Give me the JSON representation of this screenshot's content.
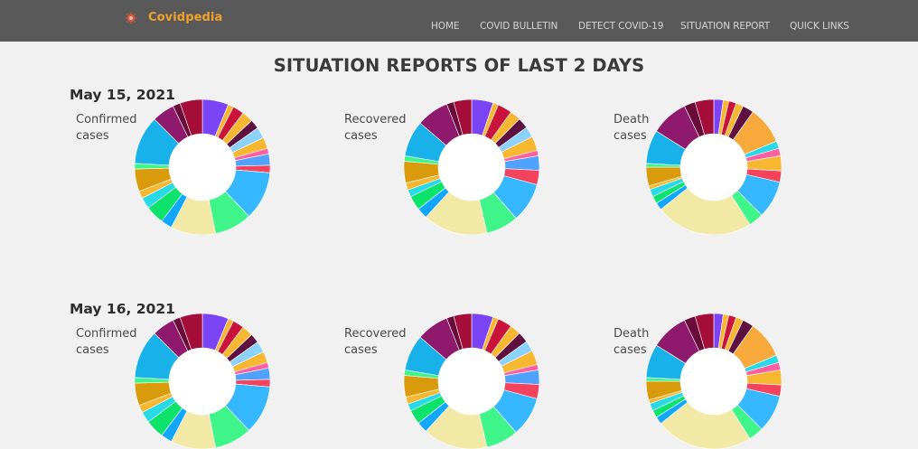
{
  "brand": {
    "name": "Covidpedia",
    "icon": "virus-icon",
    "icon_color": "#e0563f"
  },
  "nav": {
    "items": [
      {
        "label": "HOME"
      },
      {
        "label": "COVID BULLETIN"
      },
      {
        "label": "DETECT COVID-19"
      },
      {
        "label": "SITUATION REPORT"
      },
      {
        "label": "QUICK LINKS"
      }
    ]
  },
  "page": {
    "title": "SITUATION REPORTS OF LAST 2 DAYS"
  },
  "reports": [
    {
      "date": "May 15, 2021",
      "charts": [
        {
          "label_line1": "Confirmed",
          "label_line2": "cases"
        },
        {
          "label_line1": "Recovered",
          "label_line2": "cases"
        },
        {
          "label_line1": "Death",
          "label_line2": "cases"
        }
      ]
    },
    {
      "date": "May 16, 2021",
      "charts": [
        {
          "label_line1": "Confirmed",
          "label_line2": "cases"
        },
        {
          "label_line1": "Recovered",
          "label_line2": "cases"
        },
        {
          "label_line1": "Death",
          "label_line2": "cases"
        }
      ]
    }
  ],
  "chart_data": [
    {
      "type": "pie",
      "values": [
        7,
        1.5,
        3,
        3,
        2.5,
        3,
        3,
        1.5,
        3,
        2,
        13,
        10,
        12,
        3,
        5,
        3,
        2,
        6,
        1.5,
        13,
        6,
        2,
        6
      ],
      "colors": [
        "#7b44f5",
        "#f7b731",
        "#c9133b",
        "#f7b731",
        "#5e1140",
        "#8cd2ff",
        "#f7b731",
        "#ff5fa2",
        "#4fa3ff",
        "#f5425d",
        "#35b8ff",
        "#3ff58a",
        "#f2e9a6",
        "#12a7ff",
        "#0de36a",
        "#28d9e8",
        "#f7b731",
        "#d99b0b",
        "#3ff58a",
        "#18b1ea",
        "#8f1a6d",
        "#6a0b3a",
        "#a50d3a"
      ]
    },
    {
      "type": "pie",
      "values": [
        6,
        1.5,
        4,
        3,
        3,
        3,
        4,
        1.5,
        4,
        4,
        11,
        9,
        18,
        3,
        4,
        2,
        2,
        6,
        1.5,
        10,
        9,
        2,
        5
      ],
      "colors": [
        "#7b44f5",
        "#f7b731",
        "#c9133b",
        "#f7b731",
        "#5e1140",
        "#8cd2ff",
        "#f7b731",
        "#ff5fa2",
        "#4fa3ff",
        "#f5425d",
        "#35b8ff",
        "#3ff58a",
        "#f2e9a6",
        "#12a7ff",
        "#0de36a",
        "#28d9e8",
        "#f7b731",
        "#d99b0b",
        "#3ff58a",
        "#18b1ea",
        "#8f1a6d",
        "#6a0b3a",
        "#a50d3a"
      ]
    },
    {
      "type": "pie",
      "values": [
        2.5,
        1.5,
        2,
        2,
        3,
        10,
        2,
        2,
        4,
        3,
        10,
        4,
        26,
        2,
        2,
        2,
        1,
        5,
        1,
        9,
        10,
        3,
        5
      ],
      "colors": [
        "#7b44f5",
        "#f7b731",
        "#c9133b",
        "#f7b731",
        "#5e1140",
        "#f7a93b",
        "#28d9e8",
        "#ff5fa2",
        "#f7b731",
        "#f5425d",
        "#35b8ff",
        "#3ff58a",
        "#f2e9a6",
        "#12a7ff",
        "#0de36a",
        "#28d9e8",
        "#f7b731",
        "#d99b0b",
        "#3ff58a",
        "#18b1ea",
        "#8f1a6d",
        "#6a0b3a",
        "#a50d3a"
      ]
    },
    {
      "type": "pie",
      "values": [
        7,
        1.5,
        3,
        3,
        2.5,
        3,
        3,
        1.5,
        3,
        2,
        13,
        10,
        12,
        3,
        5,
        3,
        2,
        6,
        1.5,
        13,
        6,
        2,
        6
      ],
      "colors": [
        "#7b44f5",
        "#f7b731",
        "#c9133b",
        "#f7b731",
        "#5e1140",
        "#8cd2ff",
        "#f7b731",
        "#ff5fa2",
        "#4fa3ff",
        "#f5425d",
        "#35b8ff",
        "#3ff58a",
        "#f2e9a6",
        "#12a7ff",
        "#0de36a",
        "#28d9e8",
        "#f7b731",
        "#d99b0b",
        "#3ff58a",
        "#18b1ea",
        "#8f1a6d",
        "#6a0b3a",
        "#a50d3a"
      ]
    },
    {
      "type": "pie",
      "values": [
        6,
        1.5,
        4,
        3,
        3,
        3,
        4,
        1.5,
        4,
        4,
        11,
        9,
        18,
        3,
        4,
        2,
        2,
        6,
        1.5,
        10,
        9,
        2,
        5
      ],
      "colors": [
        "#7b44f5",
        "#f7b731",
        "#c9133b",
        "#f7b731",
        "#5e1140",
        "#8cd2ff",
        "#f7b731",
        "#ff5fa2",
        "#4fa3ff",
        "#f5425d",
        "#35b8ff",
        "#3ff58a",
        "#f2e9a6",
        "#12a7ff",
        "#0de36a",
        "#28d9e8",
        "#f7b731",
        "#d99b0b",
        "#3ff58a",
        "#18b1ea",
        "#8f1a6d",
        "#6a0b3a",
        "#a50d3a"
      ]
    },
    {
      "type": "pie",
      "values": [
        2.5,
        1.5,
        2,
        2,
        3,
        10,
        2,
        2,
        4,
        3,
        10,
        4,
        26,
        2,
        2,
        2,
        1,
        5,
        1,
        9,
        10,
        3,
        5
      ],
      "colors": [
        "#7b44f5",
        "#f7b731",
        "#c9133b",
        "#f7b731",
        "#5e1140",
        "#f7a93b",
        "#28d9e8",
        "#ff5fa2",
        "#f7b731",
        "#f5425d",
        "#35b8ff",
        "#3ff58a",
        "#f2e9a6",
        "#12a7ff",
        "#0de36a",
        "#28d9e8",
        "#f7b731",
        "#d99b0b",
        "#3ff58a",
        "#18b1ea",
        "#8f1a6d",
        "#6a0b3a",
        "#a50d3a"
      ]
    }
  ]
}
